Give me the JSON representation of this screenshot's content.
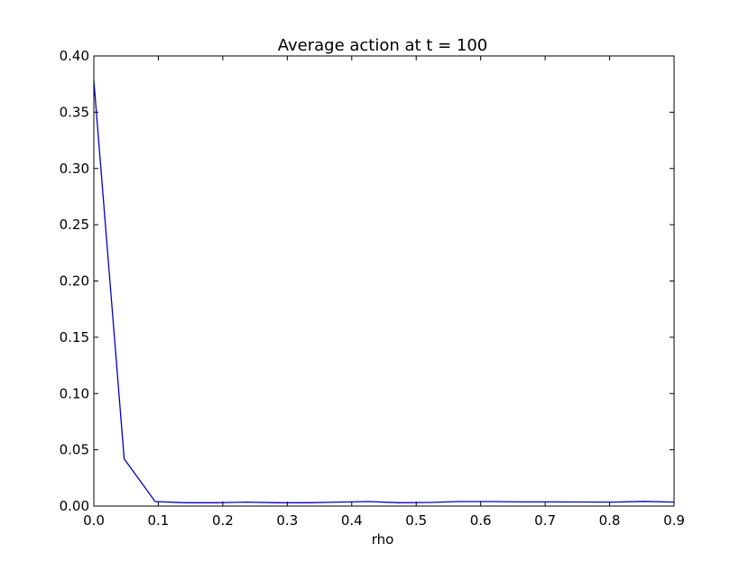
{
  "chart_data": {
    "type": "line",
    "title": "Average action at t = 100",
    "xlabel": "rho",
    "ylabel": "",
    "xlim": [
      0.0,
      0.9
    ],
    "ylim": [
      0.0,
      0.4
    ],
    "xticks": [
      "0.0",
      "0.1",
      "0.2",
      "0.3",
      "0.4",
      "0.5",
      "0.6",
      "0.7",
      "0.8",
      "0.9"
    ],
    "yticks": [
      "0.00",
      "0.05",
      "0.10",
      "0.15",
      "0.20",
      "0.25",
      "0.30",
      "0.35",
      "0.40"
    ],
    "grid": false,
    "series": [
      {
        "color": "#0000cc",
        "x": [
          0.0,
          0.047,
          0.095,
          0.142,
          0.189,
          0.237,
          0.284,
          0.332,
          0.379,
          0.426,
          0.474,
          0.521,
          0.568,
          0.616,
          0.663,
          0.711,
          0.758,
          0.805,
          0.853,
          0.9
        ],
        "y": [
          0.378,
          0.042,
          0.004,
          0.003,
          0.003,
          0.0035,
          0.003,
          0.003,
          0.0035,
          0.004,
          0.003,
          0.0032,
          0.004,
          0.004,
          0.0037,
          0.0037,
          0.0036,
          0.0035,
          0.0042,
          0.0035
        ]
      }
    ]
  }
}
